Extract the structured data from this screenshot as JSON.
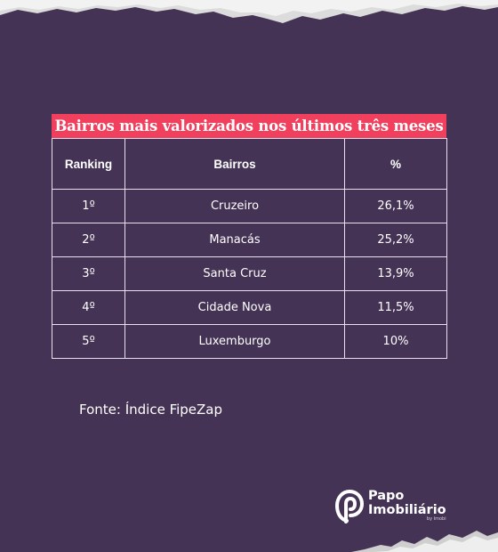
{
  "title": "Bairros mais valorizados nos últimos três meses",
  "table": {
    "headers": [
      "Ranking",
      "Bairros",
      "%"
    ],
    "rows": [
      [
        "1º",
        "Cruzeiro",
        "26,1%"
      ],
      [
        "2º",
        "Manacás",
        "25,2%"
      ],
      [
        "3º",
        "Santa Cruz",
        "13,9%"
      ],
      [
        "4º",
        "Cidade Nova",
        "11,5%"
      ],
      [
        "5º",
        "Luxemburgo",
        "10%"
      ]
    ]
  },
  "source": "Fonte: Índice FipeZap",
  "brand": {
    "line1": "Papo",
    "line2": "Imobiliário",
    "line3": "by Imobi"
  },
  "colors": {
    "background": "#443355",
    "title_bar": "#f0405d",
    "text": "#ffffff"
  }
}
